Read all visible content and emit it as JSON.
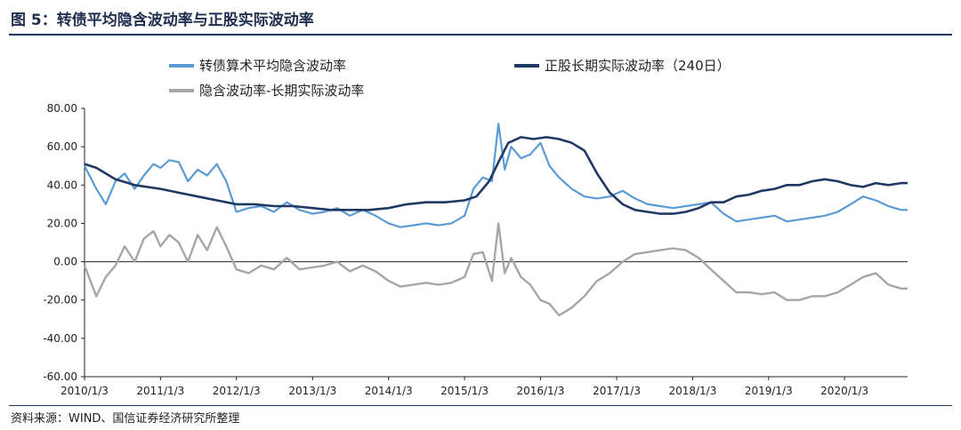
{
  "title": "图 5：转债平均隐含波动率与正股实际波动率",
  "source": "资料来源：WIND、国信证券经济研究所整理",
  "colors": {
    "implied": "#5b9bd5",
    "realized": "#1f3864",
    "spread": "#a6a6a6",
    "axis": "#222222"
  },
  "chart_data": {
    "type": "line",
    "title": "",
    "xlabel": "",
    "ylabel": "",
    "ylim": [
      -60,
      80
    ],
    "yticks": [
      "80.00",
      "60.00",
      "40.00",
      "20.00",
      "0.00",
      "-20.00",
      "-40.00",
      "-60.00"
    ],
    "ytick_values": [
      80,
      60,
      40,
      20,
      0,
      -20,
      -40,
      -60
    ],
    "xlim": [
      "2010-01-03",
      "2020-11-01"
    ],
    "xticks": [
      "2010/1/3",
      "2011/1/3",
      "2012/1/3",
      "2013/1/3",
      "2014/1/3",
      "2015/1/3",
      "2016/1/3",
      "2017/1/3",
      "2018/1/3",
      "2019/1/3",
      "2020/1/3"
    ],
    "legend_position": "top-left",
    "grid": false,
    "series": [
      {
        "name": "转债算术平均隐含波动率",
        "x": [
          "2010-01-03",
          "2010-03-01",
          "2010-04-15",
          "2010-06-01",
          "2010-07-15",
          "2010-09-01",
          "2010-10-15",
          "2010-12-01",
          "2011-01-03",
          "2011-02-15",
          "2011-04-01",
          "2011-05-15",
          "2011-07-01",
          "2011-08-15",
          "2011-10-01",
          "2011-11-15",
          "2012-01-03",
          "2012-03-01",
          "2012-05-01",
          "2012-07-01",
          "2012-09-01",
          "2012-11-01",
          "2013-01-03",
          "2013-03-01",
          "2013-05-01",
          "2013-07-01",
          "2013-09-01",
          "2013-11-01",
          "2014-01-03",
          "2014-03-01",
          "2014-05-01",
          "2014-07-01",
          "2014-09-01",
          "2014-11-01",
          "2015-01-03",
          "2015-02-15",
          "2015-04-01",
          "2015-05-15",
          "2015-06-15",
          "2015-07-15",
          "2015-08-15",
          "2015-10-01",
          "2015-11-15",
          "2016-01-03",
          "2016-02-15",
          "2016-04-01",
          "2016-06-01",
          "2016-08-01",
          "2016-10-01",
          "2016-12-01",
          "2017-02-01",
          "2017-04-01",
          "2017-06-01",
          "2017-08-01",
          "2017-10-01",
          "2017-12-01",
          "2018-02-01",
          "2018-04-01",
          "2018-06-01",
          "2018-08-01",
          "2018-10-01",
          "2018-12-01",
          "2019-02-01",
          "2019-04-01",
          "2019-06-01",
          "2019-08-01",
          "2019-10-01",
          "2019-12-01",
          "2020-02-01",
          "2020-04-01",
          "2020-06-01",
          "2020-08-01",
          "2020-10-01",
          "2020-11-01"
        ],
        "values": [
          50,
          38,
          30,
          42,
          46,
          38,
          45,
          51,
          49,
          53,
          52,
          42,
          48,
          45,
          51,
          42,
          26,
          28,
          29,
          26,
          31,
          27,
          25,
          26,
          28,
          24,
          27,
          24,
          20,
          18,
          19,
          20,
          19,
          20,
          24,
          38,
          44,
          42,
          72,
          48,
          60,
          54,
          56,
          62,
          50,
          44,
          38,
          34,
          33,
          34,
          37,
          33,
          30,
          29,
          28,
          29,
          30,
          31,
          25,
          21,
          22,
          23,
          24,
          21,
          22,
          23,
          24,
          26,
          30,
          34,
          32,
          29,
          27,
          27
        ]
      },
      {
        "name": "正股长期实际波动率（240日）",
        "x": [
          "2010-01-03",
          "2010-03-01",
          "2010-06-01",
          "2010-09-01",
          "2011-01-03",
          "2011-04-01",
          "2011-07-01",
          "2011-10-01",
          "2012-01-03",
          "2012-04-01",
          "2012-07-01",
          "2012-10-01",
          "2013-01-03",
          "2013-04-01",
          "2013-07-01",
          "2013-10-01",
          "2014-01-03",
          "2014-04-01",
          "2014-07-01",
          "2014-10-01",
          "2015-01-03",
          "2015-03-01",
          "2015-05-01",
          "2015-06-15",
          "2015-08-01",
          "2015-10-01",
          "2015-12-01",
          "2016-02-01",
          "2016-04-01",
          "2016-06-01",
          "2016-08-01",
          "2016-10-01",
          "2016-12-01",
          "2017-02-01",
          "2017-04-01",
          "2017-06-01",
          "2017-08-01",
          "2017-10-01",
          "2017-12-01",
          "2018-02-01",
          "2018-04-01",
          "2018-06-01",
          "2018-08-01",
          "2018-10-01",
          "2018-12-01",
          "2019-02-01",
          "2019-04-01",
          "2019-06-01",
          "2019-08-01",
          "2019-10-01",
          "2019-12-01",
          "2020-02-01",
          "2020-04-01",
          "2020-06-01",
          "2020-08-01",
          "2020-10-01",
          "2020-11-01"
        ],
        "values": [
          51,
          49,
          43,
          40,
          38,
          36,
          34,
          32,
          30,
          30,
          29,
          29,
          28,
          27,
          27,
          27,
          28,
          30,
          31,
          31,
          32,
          34,
          42,
          52,
          62,
          65,
          64,
          65,
          64,
          62,
          58,
          46,
          36,
          30,
          27,
          26,
          25,
          25,
          26,
          28,
          31,
          31,
          34,
          35,
          37,
          38,
          40,
          40,
          42,
          43,
          42,
          40,
          39,
          41,
          40,
          41,
          41
        ]
      },
      {
        "name": "隐含波动率-长期实际波动率",
        "x": [
          "2010-01-03",
          "2010-03-01",
          "2010-04-15",
          "2010-06-01",
          "2010-07-15",
          "2010-09-01",
          "2010-10-15",
          "2010-12-01",
          "2011-01-03",
          "2011-02-15",
          "2011-04-01",
          "2011-05-15",
          "2011-07-01",
          "2011-08-15",
          "2011-10-01",
          "2011-11-15",
          "2012-01-03",
          "2012-03-01",
          "2012-05-01",
          "2012-07-01",
          "2012-09-01",
          "2012-11-01",
          "2013-01-03",
          "2013-03-01",
          "2013-05-01",
          "2013-07-01",
          "2013-09-01",
          "2013-11-01",
          "2014-01-03",
          "2014-03-01",
          "2014-05-01",
          "2014-07-01",
          "2014-09-01",
          "2014-11-01",
          "2015-01-03",
          "2015-02-15",
          "2015-04-01",
          "2015-05-15",
          "2015-06-15",
          "2015-07-15",
          "2015-08-15",
          "2015-10-01",
          "2015-11-15",
          "2016-01-03",
          "2016-02-15",
          "2016-04-01",
          "2016-06-01",
          "2016-08-01",
          "2016-10-01",
          "2016-12-01",
          "2017-02-01",
          "2017-04-01",
          "2017-06-01",
          "2017-08-01",
          "2017-10-01",
          "2017-12-01",
          "2018-02-01",
          "2018-04-01",
          "2018-06-01",
          "2018-08-01",
          "2018-10-01",
          "2018-12-01",
          "2019-02-01",
          "2019-04-01",
          "2019-06-01",
          "2019-08-01",
          "2019-10-01",
          "2019-12-01",
          "2020-02-01",
          "2020-04-01",
          "2020-06-01",
          "2020-08-01",
          "2020-10-01",
          "2020-11-01"
        ],
        "values": [
          -2,
          -18,
          -8,
          -2,
          8,
          0,
          12,
          16,
          8,
          14,
          10,
          0,
          14,
          6,
          18,
          8,
          -4,
          -6,
          -2,
          -4,
          2,
          -4,
          -3,
          -2,
          0,
          -5,
          -2,
          -5,
          -10,
          -13,
          -12,
          -11,
          -12,
          -11,
          -8,
          4,
          5,
          -10,
          20,
          -6,
          2,
          -8,
          -12,
          -20,
          -22,
          -28,
          -24,
          -18,
          -10,
          -6,
          0,
          4,
          5,
          6,
          7,
          6,
          2,
          -4,
          -10,
          -16,
          -16,
          -17,
          -16,
          -20,
          -20,
          -18,
          -18,
          -16,
          -12,
          -8,
          -6,
          -12,
          -14,
          -14
        ]
      }
    ]
  }
}
